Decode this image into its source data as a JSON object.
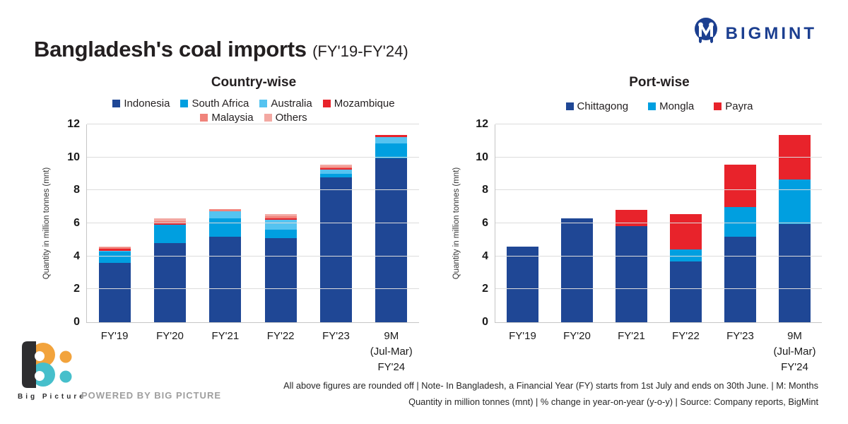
{
  "header": {
    "title": "Bangladesh's coal imports",
    "subtitle": "(FY'19-FY'24)"
  },
  "brand": {
    "name": "BIGMINT",
    "color": "#1c3f90"
  },
  "chart_data": [
    {
      "type": "bar",
      "stacked": true,
      "title": "Country-wise",
      "ylabel": "Quantity in million tonnes (mnt)",
      "ylim": [
        0,
        12
      ],
      "yticks": [
        0,
        2,
        4,
        6,
        8,
        10,
        12
      ],
      "grid": true,
      "legend_position": "top",
      "categories": [
        "FY'19",
        "FY'20",
        "FY'21",
        "FY'22",
        "FY'23",
        "9M\n(Jul-Mar)\nFY'24"
      ],
      "series": [
        {
          "name": "Indonesia",
          "color": "#1f4795",
          "values": [
            3.6,
            4.8,
            5.2,
            5.1,
            8.8,
            9.95
          ]
        },
        {
          "name": "South Africa",
          "color": "#009fe0",
          "values": [
            0.7,
            1.1,
            1.1,
            0.5,
            0.2,
            0.9
          ]
        },
        {
          "name": "Australia",
          "color": "#55c3f0",
          "values": [
            0.05,
            0.0,
            0.45,
            0.6,
            0.25,
            0.4
          ]
        },
        {
          "name": "Mozambique",
          "color": "#e8232b",
          "values": [
            0.1,
            0.1,
            0.0,
            0.1,
            0.1,
            0.1
          ]
        },
        {
          "name": "Malaysia",
          "color": "#f0837b",
          "values": [
            0.1,
            0.15,
            0.1,
            0.15,
            0.1,
            0.0
          ]
        },
        {
          "name": "Others",
          "color": "#f3a8a2",
          "values": [
            0.05,
            0.15,
            0.0,
            0.1,
            0.1,
            0.0
          ]
        }
      ],
      "totals": [
        4.6,
        6.3,
        6.85,
        6.55,
        9.55,
        11.35
      ]
    },
    {
      "type": "bar",
      "stacked": true,
      "title": "Port-wise",
      "ylabel": "Quantity in million tonnes (mnt)",
      "ylim": [
        0,
        12
      ],
      "yticks": [
        0,
        2,
        4,
        6,
        8,
        10,
        12
      ],
      "grid": true,
      "legend_position": "top",
      "categories": [
        "FY'19",
        "FY'20",
        "FY'21",
        "FY'22",
        "FY'23",
        "9M\n(Jul-Mar)\nFY'24"
      ],
      "series": [
        {
          "name": "Chittagong",
          "color": "#1f4795",
          "values": [
            4.6,
            6.3,
            5.85,
            3.7,
            5.2,
            5.95
          ]
        },
        {
          "name": "Mongla",
          "color": "#009fe0",
          "values": [
            0.0,
            0.0,
            0.0,
            0.7,
            1.8,
            2.7
          ]
        },
        {
          "name": "Payra",
          "color": "#e8232b",
          "values": [
            0.0,
            0.0,
            0.95,
            2.15,
            2.55,
            2.7
          ]
        }
      ],
      "totals": [
        4.6,
        6.3,
        6.8,
        6.55,
        9.55,
        11.35
      ]
    }
  ],
  "footer": {
    "line1": "All above figures are rounded off | Note- In Bangladesh, a Financial Year (FY) starts from 1st July and ends on 30th June. | M: Months",
    "line2": "Quantity in million tonnes (mnt) | % change in year-on-year (y-o-y) | Source: Company reports, BigMint"
  },
  "bigpicture": {
    "name": "Big Picture",
    "powered_by": "POWERED BY BIG PICTURE",
    "colors": {
      "dark": "#2e2e30",
      "orange": "#f2a33c",
      "teal": "#46bfcb"
    }
  }
}
